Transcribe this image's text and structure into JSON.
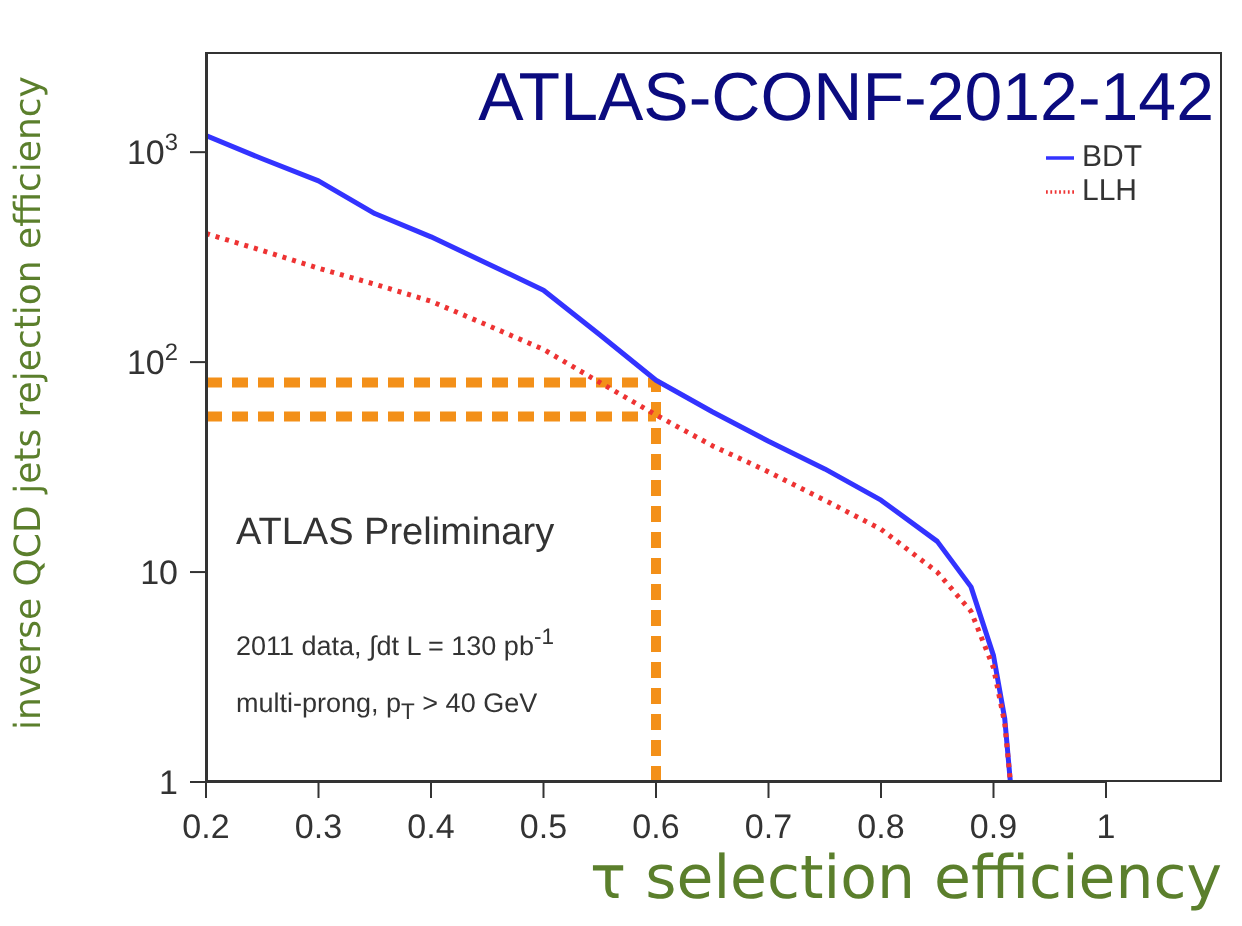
{
  "chart_data": {
    "type": "line",
    "title": "ATLAS-CONF-2012-142",
    "xlabel": "τ selection efficiency",
    "ylabel": "inverse QCD jets rejection efficiency",
    "x": [
      0.2,
      0.25,
      0.3,
      0.35,
      0.4,
      0.45,
      0.5,
      0.55,
      0.6,
      0.65,
      0.7,
      0.75,
      0.8,
      0.85,
      0.88,
      0.9,
      0.91,
      0.915
    ],
    "series": [
      {
        "name": "BDT",
        "color": "#3333ff",
        "line_style": "solid",
        "values": [
          1200,
          930,
          730,
          510,
          395,
          295,
          220,
          135,
          82,
          58,
          42,
          31,
          22,
          14,
          8.5,
          4,
          2,
          1
        ]
      },
      {
        "name": "LLH",
        "color": "#ee3333",
        "line_style": "dotted",
        "values": [
          410,
          340,
          280,
          235,
          195,
          150,
          115,
          80,
          56,
          40,
          30,
          22,
          16,
          10,
          6.5,
          3.5,
          1.9,
          1
        ]
      }
    ],
    "xlim": [
      0.2,
      1
    ],
    "xticks": [
      0.2,
      0.3,
      0.4,
      0.5,
      0.6,
      0.7,
      0.8,
      0.9,
      1
    ],
    "ylim": [
      1,
      3000
    ],
    "yticks": [
      1,
      10,
      {
        "value": 100,
        "label": "10$^{2}$"
      },
      {
        "value": 1000,
        "label": "10$^{3}$"
      }
    ],
    "log": "y",
    "legend": "top right",
    "marker": "none",
    "ref_lines": [
      {
        "axis": "y",
        "value": 80,
        "color": "#f39019",
        "line_style": "dashed"
      },
      {
        "axis": "y",
        "value": 55,
        "color": "#f39019",
        "line_style": "dashed"
      },
      {
        "axis": "x",
        "value": 0.6,
        "color": "#f39019",
        "line_style": "dashed"
      }
    ],
    "annotations": [
      "ATLAS Preliminary",
      "2011 data, ∫dt L = 130 pb$^{-1}$",
      "multi-prong, p$_{T}$ > 40 GeV"
    ]
  }
}
